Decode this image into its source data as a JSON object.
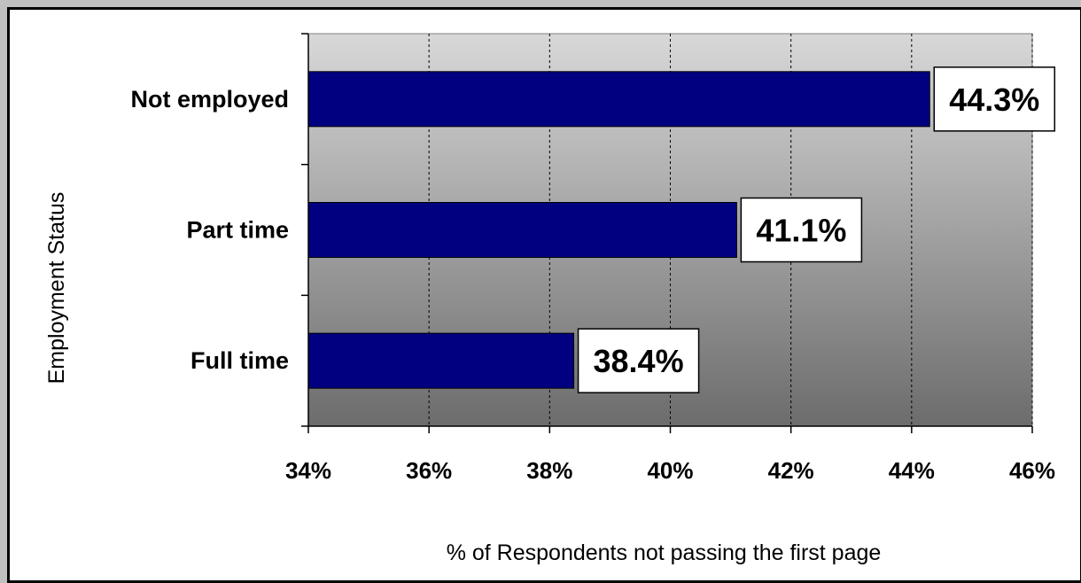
{
  "chart_data": {
    "type": "bar",
    "orientation": "horizontal",
    "categories": [
      "Full time",
      "Part time",
      "Not employed"
    ],
    "values": [
      38.4,
      41.1,
      44.3
    ],
    "data_labels": [
      "38.4%",
      "41.1%",
      "44.3%"
    ],
    "title": "",
    "xlabel": "% of Respondents not passing the first page",
    "ylabel": "Employment Status",
    "xlim": [
      34,
      46
    ],
    "x_ticks": [
      34,
      36,
      38,
      40,
      42,
      44,
      46
    ],
    "x_tick_labels": [
      "34%",
      "36%",
      "38%",
      "40%",
      "42%",
      "44%",
      "46%"
    ],
    "grid": "vertical-dashed",
    "legend": "none",
    "bar_color": "#000080",
    "plot_background": "gradient light-to-dark gray"
  }
}
